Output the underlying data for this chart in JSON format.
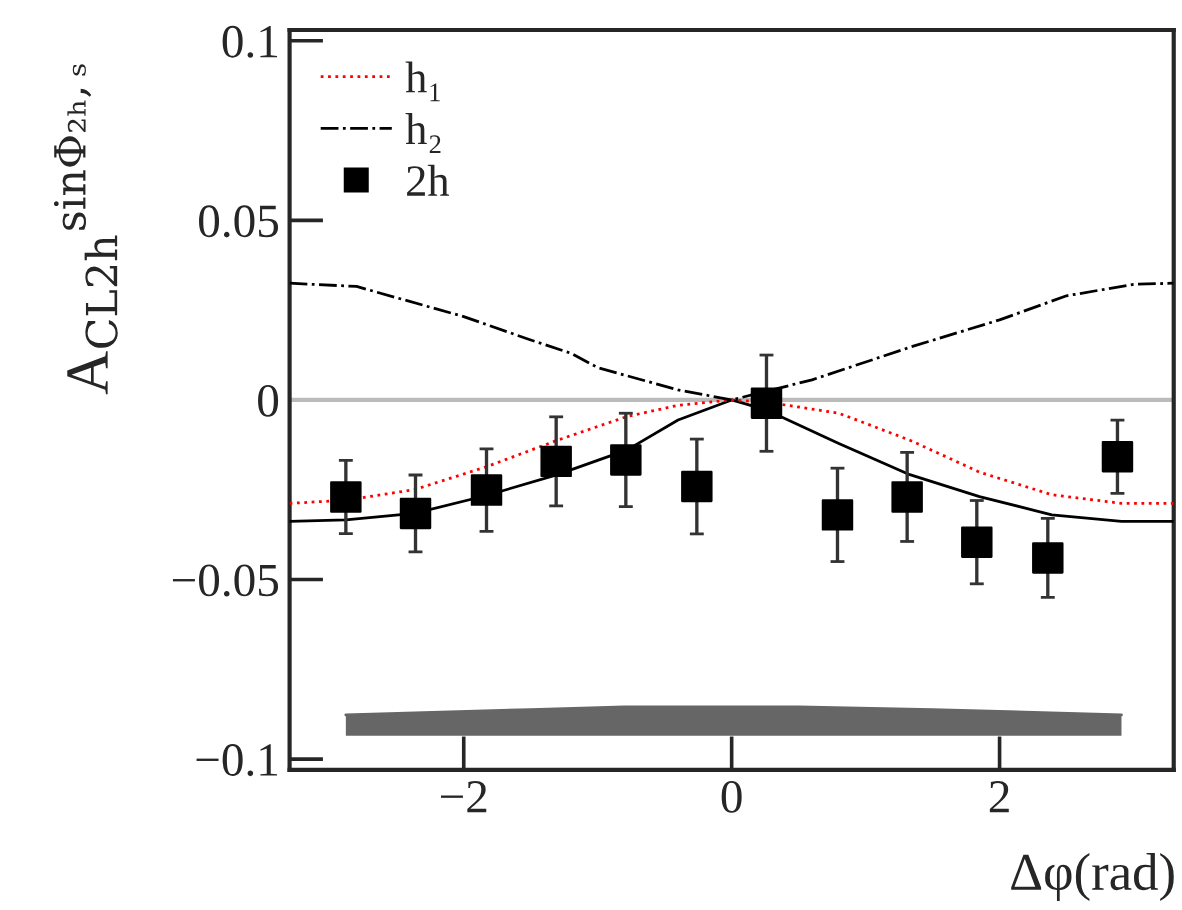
{
  "chart_data": {
    "type": "scatter",
    "ylabel": "A$_{CL2h}$$^{sinΦ₂ₕ,ₛ}$",
    "xlabel": "Δφ(rad)",
    "xlim": [
      -3.3,
      3.3
    ],
    "xticks": [
      {
        "value": -2,
        "label": "−2"
      },
      0,
      2
    ],
    "ylim": [
      -0.103,
      0.103
    ],
    "yticks": [
      {
        "value": -0.1,
        "label": "−0.1"
      },
      {
        "value": -0.05,
        "label": "−0.05"
      },
      0,
      0.05,
      0.1
    ],
    "grid": false,
    "legend": "top left",
    "ref_lines": [
      {
        "axis": "y",
        "value": 0,
        "color": "#bbbbbb"
      }
    ],
    "series": [
      {
        "type": "line",
        "color": "#666666",
        "line_style": "solid",
        "x": [
          -2.88,
          -1.5,
          -0.8,
          0.5,
          1.5,
          2.91
        ],
        "values": [
          -0.0877,
          -0.0862,
          -0.0855,
          -0.0855,
          -0.0862,
          -0.0877
        ],
        "lower": [
          -0.0935,
          -0.0935,
          -0.0935,
          -0.0935,
          -0.0935,
          -0.0935
        ],
        "upper": [
          -0.0877,
          -0.0862,
          -0.0855,
          -0.0855,
          -0.0862,
          -0.0877
        ]
      },
      {
        "type": "line",
        "color": "#000000",
        "line_style": "solid",
        "x": [
          -3.3,
          -2.88,
          -2.37,
          -1.83,
          -1.3,
          -0.78,
          -0.4,
          0,
          0.26,
          0.8,
          1.33,
          1.85,
          2.39,
          2.91,
          3.3
        ],
        "values": [
          -0.0338,
          -0.0334,
          -0.0316,
          -0.0266,
          -0.0208,
          -0.0139,
          -0.0056,
          0,
          -0.0028,
          -0.0121,
          -0.0208,
          -0.0269,
          -0.032,
          -0.0338,
          -0.0338
        ]
      },
      {
        "type": "line",
        "name": "h₁",
        "color": "#ff0000",
        "line_style": "dotted",
        "x": [
          -3.3,
          -2.88,
          -2.37,
          -1.83,
          -1.3,
          -0.78,
          -0.4,
          0,
          0.26,
          0.8,
          1.33,
          1.85,
          2.39,
          2.91,
          3.3
        ],
        "values": [
          -0.0288,
          -0.0279,
          -0.025,
          -0.0186,
          -0.0112,
          -0.0046,
          -0.0015,
          0,
          -0.0006,
          -0.0037,
          -0.0112,
          -0.0201,
          -0.0264,
          -0.0288,
          -0.0288
        ]
      },
      {
        "type": "line",
        "name": "h₂",
        "color": "#000000",
        "line_style": "dashdot",
        "x": [
          -3.3,
          -2.8,
          -2.0,
          -1.5,
          -1.2,
          -1.0,
          -0.4,
          0,
          0.6,
          1.35,
          2.0,
          2.5,
          3.0,
          3.3
        ],
        "values": [
          0.0325,
          0.0316,
          0.0232,
          0.0167,
          0.013,
          0.009,
          0.0028,
          0,
          0.0056,
          0.0149,
          0.0223,
          0.029,
          0.0322,
          0.0325
        ]
      },
      {
        "name": "2h",
        "color": "#000000",
        "marker": "square",
        "x": [
          -2.88,
          -2.36,
          -1.83,
          -1.31,
          -0.79,
          -0.26,
          0.26,
          0.79,
          1.31,
          1.83,
          2.36,
          2.88
        ],
        "values": [
          -0.027,
          -0.0316,
          -0.0251,
          -0.0171,
          -0.0167,
          -0.0241,
          -0.0009,
          -0.032,
          -0.027,
          -0.0396,
          -0.044,
          -0.0158
        ],
        "errors": [
          0.0102,
          0.0107,
          0.0115,
          0.0124,
          0.013,
          0.0132,
          0.0134,
          0.013,
          0.0124,
          0.0116,
          0.011,
          0.0102
        ]
      }
    ]
  }
}
